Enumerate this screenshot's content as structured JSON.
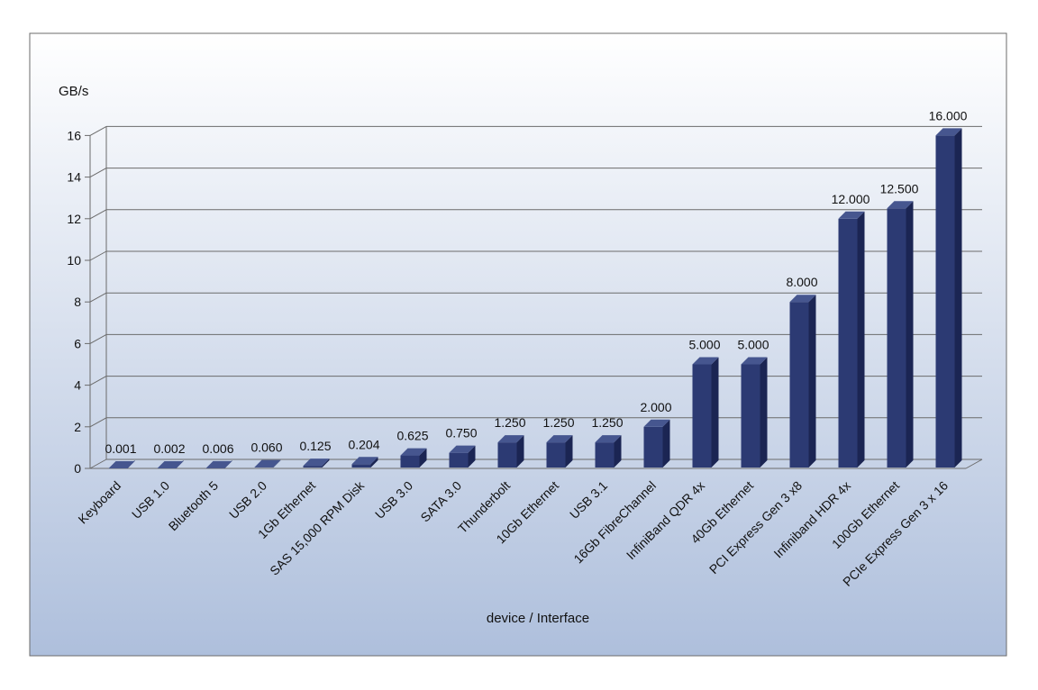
{
  "chart_data": {
    "type": "bar",
    "title": "",
    "ylabel": "GB/s",
    "xlabel": "device / Interface",
    "ylim": [
      0,
      16
    ],
    "yticks": [
      "0",
      "2",
      "4",
      "6",
      "8",
      "10",
      "12",
      "14",
      "16"
    ],
    "grid": true,
    "categories": [
      "Keyboard",
      "USB 1.0",
      "Bluetooth 5",
      "USB 2.0",
      "1Gb Ethernet",
      "SAS 15,000 RPM Disk",
      "USB 3.0",
      "SATA 3.0",
      "Thunderbolt",
      "10Gb Ethernet",
      "USB 3.1",
      "16Gb FibreChannel",
      "InfiniBand QDR 4x",
      "40Gb Ethernet",
      "PCI Express Gen 3 x8",
      "Infiniband HDR 4x",
      "100Gb Ethernet",
      "PCIe Express Gen 3 x 16"
    ],
    "values": [
      0.001,
      0.002,
      0.006,
      0.06,
      0.125,
      0.204,
      0.625,
      0.75,
      1.25,
      1.25,
      1.25,
      2.0,
      5.0,
      5.0,
      8.0,
      12.0,
      12.5,
      16.0
    ],
    "value_labels": [
      "0.001",
      "0.002",
      "0.006",
      "0.060",
      "0.125",
      "0.204",
      "0.625",
      "0.750",
      "1.250",
      "1.250",
      "1.250",
      "2.000",
      "5.000",
      "5.000",
      "8.000",
      "12.000",
      "12.500",
      "16.000"
    ],
    "colors": {
      "bar_front": "#2c3a73",
      "bar_side": "#1b2553",
      "bar_top": "#46568f",
      "background_top": "#ffffff",
      "background_bottom": "#aebfdc",
      "grid": "#6b6b6b"
    }
  }
}
